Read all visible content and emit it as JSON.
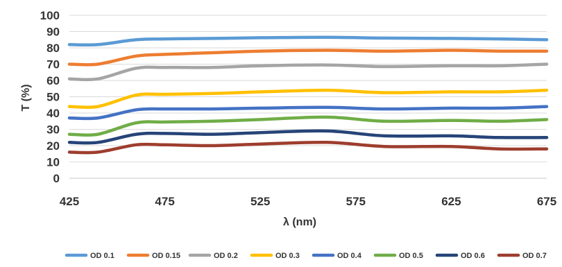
{
  "chart_data": {
    "type": "line",
    "xlabel": "λ (nm)",
    "ylabel": "T (%)",
    "xlim": [
      425,
      675
    ],
    "ylim": [
      0,
      100
    ],
    "xticks": [
      "425",
      "475",
      "525",
      "575",
      "625",
      "675"
    ],
    "yticks": [
      "0",
      "10",
      "20",
      "30",
      "40",
      "50",
      "60",
      "70",
      "80",
      "90",
      "100"
    ],
    "grid": "horizontal",
    "legend": "bottom",
    "x": [
      425,
      440,
      460,
      475,
      500,
      525,
      560,
      590,
      625,
      650,
      675
    ],
    "series": [
      {
        "name": "OD 0.1",
        "color": "#5b9bd5",
        "values": [
          82,
          82,
          85,
          85.5,
          85.8,
          86.2,
          86.5,
          86,
          85.8,
          85.5,
          85
        ]
      },
      {
        "name": "OD 0.15",
        "color": "#ed7d31",
        "values": [
          70,
          70,
          75,
          76,
          77,
          78,
          78.5,
          78,
          78.5,
          78,
          78
        ]
      },
      {
        "name": "OD 0.2",
        "color": "#a5a5a5",
        "values": [
          61,
          61,
          67.5,
          68,
          68,
          69,
          69.5,
          68.5,
          69,
          69,
          70
        ]
      },
      {
        "name": "OD 0.3",
        "color": "#ffc000",
        "values": [
          44,
          44,
          51,
          51.5,
          52,
          53,
          54,
          52.5,
          53,
          53,
          54
        ]
      },
      {
        "name": "OD 0.4",
        "color": "#4472c4",
        "values": [
          37,
          37,
          42,
          42.5,
          42.5,
          43,
          43.5,
          42.5,
          43,
          43,
          44
        ]
      },
      {
        "name": "OD 0.5",
        "color": "#70ad47",
        "values": [
          27,
          27,
          34,
          34.5,
          35,
          36,
          37.5,
          35,
          35.5,
          35,
          36
        ]
      },
      {
        "name": "OD 0.6",
        "color": "#264478",
        "values": [
          22,
          22,
          27,
          27.5,
          27,
          28,
          29,
          26,
          26,
          25,
          25
        ]
      },
      {
        "name": "OD 0.7",
        "color": "#9e3d2e",
        "values": [
          16,
          16,
          20.5,
          20.5,
          20,
          21,
          22,
          19.5,
          19.5,
          18,
          18
        ]
      }
    ]
  }
}
